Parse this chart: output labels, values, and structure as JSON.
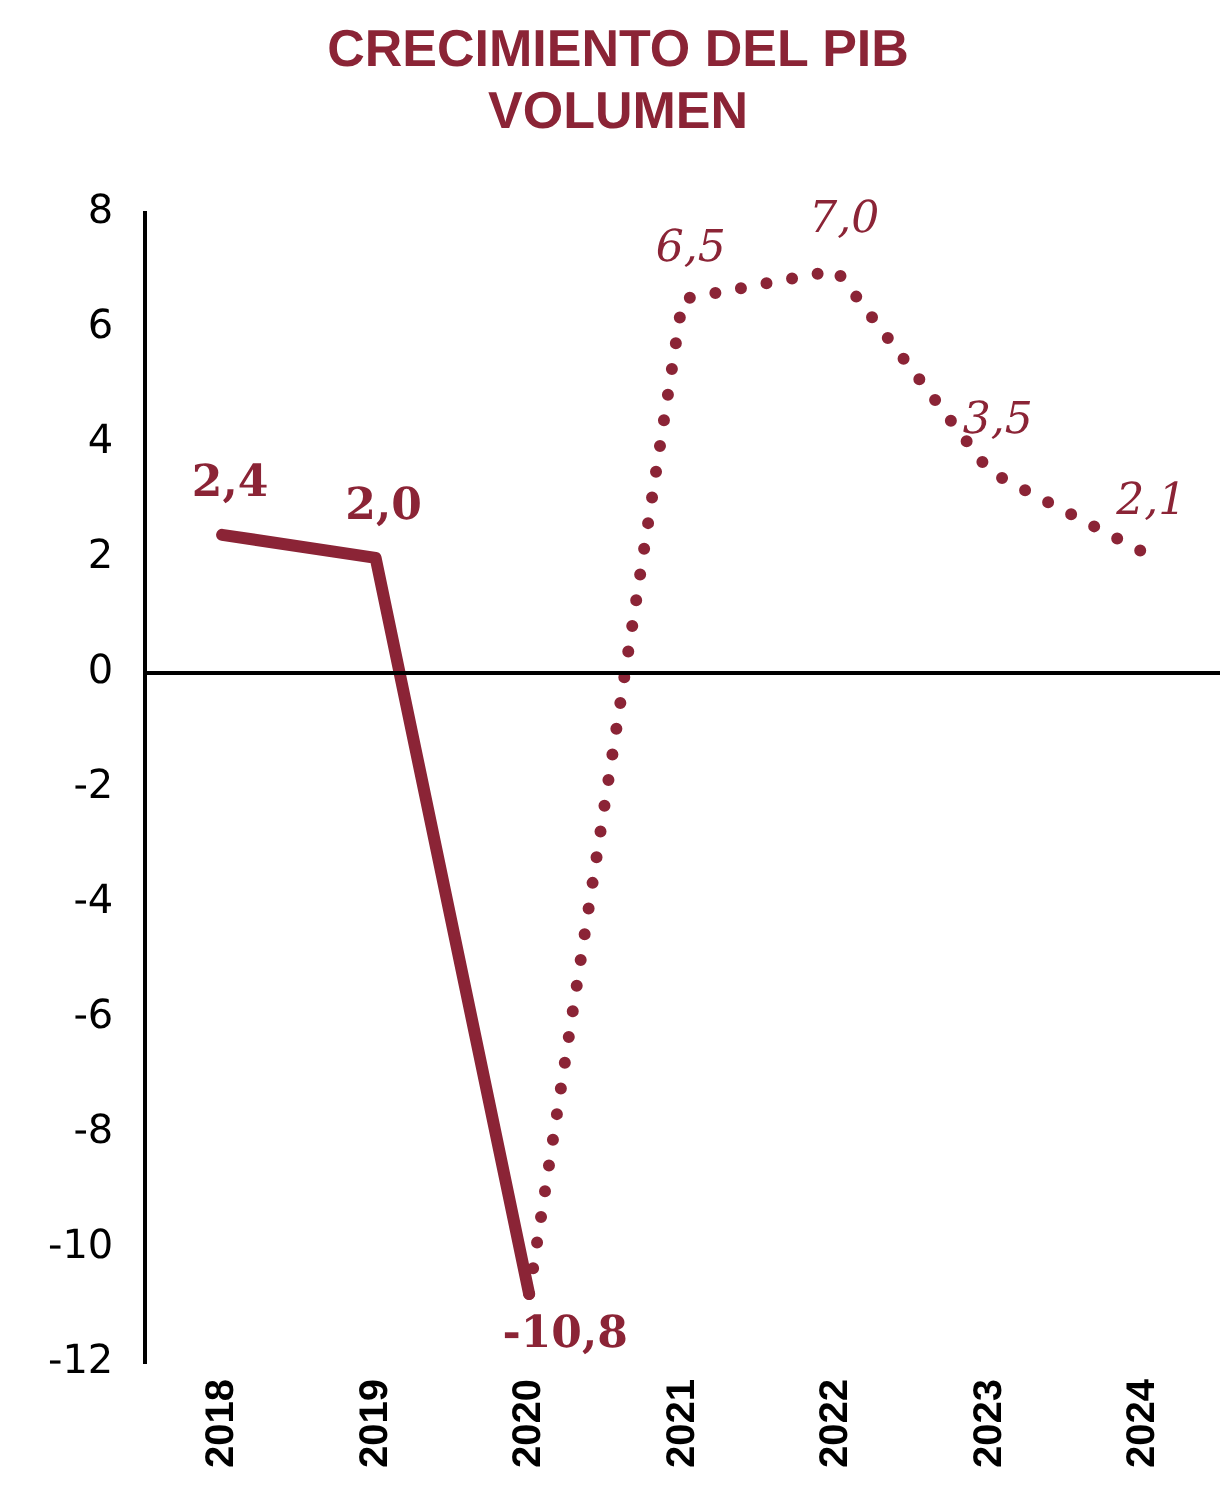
{
  "chart_data": {
    "type": "line",
    "title": "CRECIMIENTO DEL PIB\nVOLUMEN",
    "categories": [
      "2018",
      "2019",
      "2020",
      "2021",
      "2022",
      "2023",
      "2024"
    ],
    "series": [
      {
        "color": "#8b2436",
        "line_style": "solid",
        "values": [
          2.4,
          2.0,
          -10.8,
          null,
          null,
          null,
          null
        ],
        "value_labels": [
          "2,4",
          "2,0",
          "-10,8",
          null,
          null,
          null,
          null
        ]
      },
      {
        "color": "#8b2436",
        "line_style": "dotted",
        "values": [
          null,
          null,
          -10.8,
          6.5,
          7.0,
          3.5,
          2.1
        ],
        "value_labels": [
          null,
          null,
          null,
          "6,5",
          "7,0",
          "3,5",
          "2,1"
        ]
      }
    ],
    "ylim": [
      -12,
      8
    ],
    "yticks": [
      -12,
      -10,
      -8,
      -6,
      -4,
      -2,
      0,
      2,
      4,
      6,
      8
    ],
    "grid": false,
    "legend": false,
    "marker": "none",
    "ref_lines": [
      {
        "axis": "y",
        "value": 0,
        "color": "#000000"
      }
    ]
  }
}
